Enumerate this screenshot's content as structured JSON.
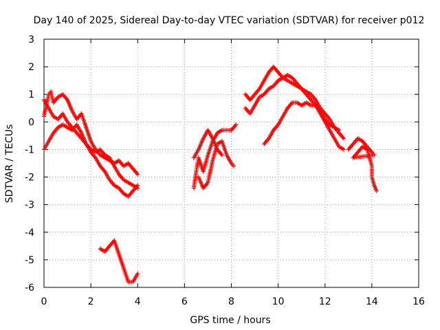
{
  "chart_data": {
    "type": "scatter",
    "title": "Day 140 of 2025, Sidereal Day-to-day VTEC variation (SDTVAR) for receiver p012",
    "xlabel": "GPS time / hours",
    "ylabel": "SDTVAR / TECUs",
    "xlim": [
      0,
      16
    ],
    "ylim": [
      -6,
      3
    ],
    "xticks": [
      "0",
      "2",
      "4",
      "6",
      "8",
      "10",
      "12",
      "14",
      "16"
    ],
    "yticks": [
      "3",
      "2",
      "1",
      "0",
      "-1",
      "-2",
      "-3",
      "-4",
      "-5",
      "-6"
    ],
    "grid": true,
    "marker": "plus",
    "color": "#ff0000",
    "series": [
      {
        "name": "track-a",
        "points": [
          [
            0.0,
            0.2
          ],
          [
            0.1,
            0.6
          ],
          [
            0.2,
            1.0
          ],
          [
            0.3,
            1.1
          ],
          [
            0.4,
            0.7
          ],
          [
            0.6,
            0.9
          ],
          [
            0.8,
            1.0
          ],
          [
            1.0,
            0.8
          ],
          [
            1.2,
            0.4
          ],
          [
            1.4,
            0.1
          ],
          [
            1.6,
            0.3
          ],
          [
            1.8,
            -0.2
          ],
          [
            2.0,
            -0.7
          ],
          [
            2.2,
            -1.0
          ],
          [
            2.4,
            -1.2
          ],
          [
            2.6,
            -1.3
          ],
          [
            2.8,
            -1.4
          ],
          [
            3.0,
            -1.5
          ],
          [
            3.2,
            -1.4
          ],
          [
            3.4,
            -1.6
          ],
          [
            3.6,
            -1.5
          ],
          [
            3.8,
            -1.7
          ],
          [
            4.0,
            -1.9
          ]
        ]
      },
      {
        "name": "track-b",
        "points": [
          [
            0.0,
            0.8
          ],
          [
            0.2,
            0.5
          ],
          [
            0.4,
            0.2
          ],
          [
            0.6,
            0.1
          ],
          [
            0.8,
            0.3
          ],
          [
            1.0,
            0.0
          ],
          [
            1.2,
            -0.2
          ],
          [
            1.4,
            -0.4
          ],
          [
            1.6,
            -0.6
          ],
          [
            1.8,
            -0.8
          ],
          [
            2.0,
            -1.0
          ],
          [
            2.2,
            -1.1
          ],
          [
            2.4,
            -1.0
          ],
          [
            2.6,
            -1.2
          ],
          [
            2.8,
            -1.3
          ],
          [
            3.0,
            -1.6
          ],
          [
            3.2,
            -1.9
          ],
          [
            3.4,
            -2.1
          ],
          [
            3.6,
            -2.2
          ],
          [
            3.8,
            -2.3
          ],
          [
            4.0,
            -2.4
          ]
        ]
      },
      {
        "name": "track-c",
        "points": [
          [
            0.0,
            -1.0
          ],
          [
            0.2,
            -0.7
          ],
          [
            0.4,
            -0.4
          ],
          [
            0.6,
            -0.2
          ],
          [
            0.8,
            -0.1
          ],
          [
            1.0,
            -0.2
          ],
          [
            1.2,
            -0.3
          ],
          [
            1.4,
            -0.1
          ],
          [
            1.6,
            -0.4
          ],
          [
            1.8,
            -0.8
          ],
          [
            2.0,
            -1.1
          ],
          [
            2.2,
            -1.3
          ],
          [
            2.4,
            -1.6
          ],
          [
            2.6,
            -1.8
          ],
          [
            2.8,
            -2.1
          ],
          [
            3.0,
            -2.3
          ],
          [
            3.2,
            -2.4
          ],
          [
            3.4,
            -2.6
          ],
          [
            3.6,
            -2.7
          ],
          [
            3.8,
            -2.5
          ],
          [
            4.0,
            -2.3
          ]
        ]
      },
      {
        "name": "track-d",
        "points": [
          [
            2.4,
            -4.6
          ],
          [
            2.6,
            -4.7
          ],
          [
            2.8,
            -4.5
          ],
          [
            3.0,
            -4.3
          ],
          [
            3.2,
            -4.8
          ],
          [
            3.4,
            -5.3
          ],
          [
            3.6,
            -5.8
          ],
          [
            3.8,
            -5.8
          ],
          [
            4.0,
            -5.5
          ]
        ]
      },
      {
        "name": "track-e",
        "points": [
          [
            6.4,
            -2.4
          ],
          [
            6.5,
            -1.8
          ],
          [
            6.6,
            -1.3
          ],
          [
            6.8,
            -1.8
          ],
          [
            7.0,
            -1.2
          ],
          [
            7.2,
            -0.7
          ],
          [
            7.4,
            -0.4
          ],
          [
            7.6,
            -0.3
          ],
          [
            7.8,
            -0.3
          ],
          [
            8.0,
            -0.3
          ],
          [
            8.2,
            -0.1
          ]
        ]
      },
      {
        "name": "track-f",
        "points": [
          [
            6.6,
            -2.0
          ],
          [
            6.8,
            -2.4
          ],
          [
            7.0,
            -2.2
          ],
          [
            7.2,
            -1.4
          ],
          [
            7.4,
            -0.8
          ],
          [
            7.6,
            -0.7
          ],
          [
            7.8,
            -1.2
          ],
          [
            8.0,
            -1.5
          ],
          [
            8.1,
            -1.6
          ]
        ]
      },
      {
        "name": "track-g",
        "points": [
          [
            6.4,
            -1.3
          ],
          [
            6.6,
            -1.0
          ],
          [
            6.8,
            -0.6
          ],
          [
            7.0,
            -0.3
          ],
          [
            7.2,
            -0.6
          ],
          [
            7.4,
            -1.0
          ],
          [
            7.6,
            -1.2
          ]
        ]
      },
      {
        "name": "track-h",
        "points": [
          [
            8.6,
            1.0
          ],
          [
            8.8,
            0.8
          ],
          [
            9.0,
            1.0
          ],
          [
            9.2,
            1.2
          ],
          [
            9.4,
            1.5
          ],
          [
            9.6,
            1.8
          ],
          [
            9.8,
            2.0
          ],
          [
            10.0,
            1.8
          ],
          [
            10.2,
            1.6
          ],
          [
            10.4,
            1.5
          ],
          [
            10.6,
            1.4
          ],
          [
            10.8,
            1.3
          ],
          [
            11.0,
            1.2
          ],
          [
            11.2,
            1.0
          ],
          [
            11.4,
            0.8
          ],
          [
            11.6,
            0.6
          ],
          [
            11.8,
            0.3
          ],
          [
            12.0,
            0.0
          ],
          [
            12.2,
            -0.3
          ],
          [
            12.4,
            -0.6
          ],
          [
            12.6,
            -0.9
          ],
          [
            12.8,
            -1.0
          ]
        ]
      },
      {
        "name": "track-i",
        "points": [
          [
            8.6,
            0.5
          ],
          [
            8.8,
            0.3
          ],
          [
            9.0,
            0.6
          ],
          [
            9.2,
            0.9
          ],
          [
            9.4,
            1.0
          ],
          [
            9.6,
            1.2
          ],
          [
            9.8,
            1.3
          ],
          [
            10.0,
            1.5
          ],
          [
            10.2,
            1.6
          ],
          [
            10.4,
            1.7
          ],
          [
            10.6,
            1.6
          ],
          [
            10.8,
            1.4
          ],
          [
            11.0,
            1.2
          ],
          [
            11.2,
            1.1
          ],
          [
            11.4,
            1.0
          ],
          [
            11.6,
            0.8
          ],
          [
            11.8,
            0.5
          ],
          [
            12.0,
            0.3
          ],
          [
            12.2,
            0.1
          ],
          [
            12.4,
            -0.2
          ],
          [
            12.6,
            -0.4
          ],
          [
            12.8,
            -0.6
          ]
        ]
      },
      {
        "name": "track-j",
        "points": [
          [
            9.4,
            -0.8
          ],
          [
            9.6,
            -0.6
          ],
          [
            9.8,
            -0.3
          ],
          [
            10.0,
            -0.1
          ],
          [
            10.2,
            0.2
          ],
          [
            10.4,
            0.5
          ],
          [
            10.6,
            0.7
          ],
          [
            10.8,
            0.7
          ],
          [
            11.0,
            0.6
          ],
          [
            11.2,
            0.7
          ],
          [
            11.4,
            0.6
          ],
          [
            11.6,
            0.6
          ],
          [
            11.8,
            0.4
          ],
          [
            12.0,
            0.1
          ],
          [
            12.2,
            -0.1
          ],
          [
            12.4,
            -0.2
          ],
          [
            12.6,
            -0.3
          ]
        ]
      },
      {
        "name": "track-k",
        "points": [
          [
            13.0,
            -1.0
          ],
          [
            13.2,
            -0.8
          ],
          [
            13.4,
            -0.6
          ],
          [
            13.6,
            -0.7
          ],
          [
            13.8,
            -0.9
          ],
          [
            14.0,
            -1.1
          ],
          [
            14.1,
            -1.2
          ],
          [
            13.2,
            -1.3
          ],
          [
            13.4,
            -1.1
          ],
          [
            13.6,
            -0.9
          ],
          [
            13.8,
            -1.0
          ],
          [
            14.0,
            -1.6
          ],
          [
            14.0,
            -2.0
          ],
          [
            14.1,
            -2.3
          ],
          [
            14.2,
            -2.5
          ]
        ]
      }
    ]
  }
}
